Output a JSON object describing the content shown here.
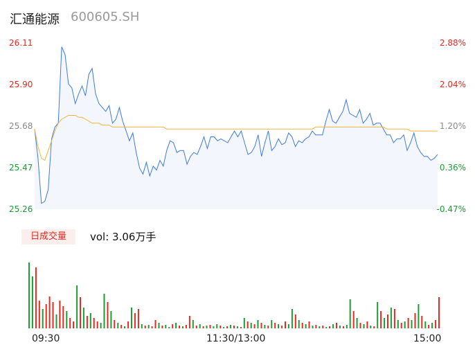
{
  "header": {
    "name": "汇通能源",
    "code": "600605.SH"
  },
  "y_left": [
    "26.11",
    "25.90",
    "25.68",
    "25.47",
    "25.26"
  ],
  "y_right": [
    "2.88%",
    "2.04%",
    "1.20%",
    "0.36%",
    "-0.47%"
  ],
  "volume": {
    "badge": "日成交量",
    "label": "vol: 3.06万手"
  },
  "x_labels": [
    "09:30",
    "11:30/13:00",
    "15:00"
  ],
  "colors": {
    "price": "#3d78e8",
    "avg": "#f0b53a",
    "up": "#e8291f",
    "down": "#1b9d32",
    "flat": "#888888"
  },
  "chart_data": {
    "type": "line",
    "price_range": [
      25.26,
      26.11
    ],
    "pct_range": [
      -0.47,
      2.88
    ],
    "series": [],
    "price": [
      25.67,
      25.52,
      25.29,
      25.3,
      25.36,
      25.62,
      25.68,
      25.7,
      26.09,
      26.05,
      25.9,
      25.88,
      25.8,
      25.85,
      25.89,
      25.84,
      25.95,
      25.98,
      25.85,
      25.8,
      25.78,
      25.76,
      25.79,
      25.7,
      25.72,
      25.78,
      25.71,
      25.66,
      25.61,
      25.65,
      25.55,
      25.47,
      25.44,
      25.5,
      25.43,
      25.48,
      25.46,
      25.51,
      25.48,
      25.56,
      25.61,
      25.6,
      25.55,
      25.56,
      25.56,
      25.49,
      25.53,
      25.55,
      25.54,
      25.58,
      25.63,
      25.57,
      25.63,
      25.63,
      25.61,
      25.62,
      25.61,
      25.6,
      25.63,
      25.66,
      25.63,
      25.66,
      25.6,
      25.54,
      25.55,
      25.58,
      25.64,
      25.53,
      25.6,
      25.66,
      25.56,
      25.58,
      25.62,
      25.59,
      25.6,
      25.65,
      25.63,
      25.58,
      25.61,
      25.6,
      25.62,
      25.63,
      25.66,
      25.64,
      25.64,
      25.64,
      25.71,
      25.77,
      25.71,
      25.7,
      25.73,
      25.76,
      25.82,
      25.75,
      25.74,
      25.73,
      25.77,
      25.7,
      25.72,
      25.75,
      25.69,
      25.7,
      25.7,
      25.67,
      25.64,
      25.64,
      25.6,
      25.62,
      25.62,
      25.64,
      25.56,
      25.6,
      25.65,
      25.58,
      25.55,
      25.53,
      25.53,
      25.51,
      25.52,
      25.54
    ],
    "avg": [
      25.67,
      25.58,
      25.52,
      25.51,
      25.56,
      25.61,
      25.66,
      25.7,
      25.72,
      25.73,
      25.74,
      25.74,
      25.74,
      25.73,
      25.73,
      25.72,
      25.71,
      25.7,
      25.7,
      25.7,
      25.69,
      25.69,
      25.69,
      25.68,
      25.68,
      25.68,
      25.68,
      25.68,
      25.68,
      25.68,
      25.68,
      25.68,
      25.68,
      25.68,
      25.68,
      25.68,
      25.68,
      25.68,
      25.68,
      25.67,
      25.67,
      25.67,
      25.67,
      25.67,
      25.67,
      25.67,
      25.67,
      25.67,
      25.67,
      25.67,
      25.67,
      25.67,
      25.67,
      25.67,
      25.67,
      25.67,
      25.67,
      25.67,
      25.67,
      25.67,
      25.67,
      25.67,
      25.67,
      25.67,
      25.67,
      25.67,
      25.67,
      25.67,
      25.67,
      25.67,
      25.67,
      25.67,
      25.67,
      25.67,
      25.67,
      25.67,
      25.67,
      25.67,
      25.67,
      25.67,
      25.67,
      25.67,
      25.67,
      25.68,
      25.68,
      25.68,
      25.68,
      25.68,
      25.68,
      25.68,
      25.68,
      25.68,
      25.68,
      25.68,
      25.68,
      25.68,
      25.68,
      25.68,
      25.68,
      25.68,
      25.68,
      25.68,
      25.68,
      25.68,
      25.67,
      25.67,
      25.67,
      25.67,
      25.67,
      25.67,
      25.67,
      25.66,
      25.66,
      25.66,
      25.66,
      25.66,
      25.66,
      25.66,
      25.66,
      25.66
    ],
    "volume_bars": [
      [
        95,
        "d"
      ],
      [
        75,
        "d"
      ],
      [
        88,
        "u"
      ],
      [
        40,
        "u"
      ],
      [
        28,
        "d"
      ],
      [
        35,
        "u"
      ],
      [
        46,
        "u"
      ],
      [
        38,
        "u"
      ],
      [
        20,
        "d"
      ],
      [
        40,
        "u"
      ],
      [
        32,
        "u"
      ],
      [
        25,
        "d"
      ],
      [
        15,
        "u"
      ],
      [
        10,
        "u"
      ],
      [
        62,
        "d"
      ],
      [
        45,
        "u"
      ],
      [
        30,
        "d"
      ],
      [
        18,
        "u"
      ],
      [
        22,
        "d"
      ],
      [
        15,
        "u"
      ],
      [
        10,
        "u"
      ],
      [
        8,
        "d"
      ],
      [
        50,
        "d"
      ],
      [
        38,
        "u"
      ],
      [
        25,
        "d"
      ],
      [
        12,
        "u"
      ],
      [
        8,
        "d"
      ],
      [
        5,
        "u"
      ],
      [
        3,
        "d"
      ],
      [
        10,
        "u"
      ],
      [
        30,
        "d"
      ],
      [
        22,
        "u"
      ],
      [
        28,
        "u"
      ],
      [
        6,
        "d"
      ],
      [
        4,
        "u"
      ],
      [
        5,
        "d"
      ],
      [
        3,
        "u"
      ],
      [
        12,
        "u"
      ],
      [
        8,
        "d"
      ],
      [
        4,
        "u"
      ],
      [
        5,
        "d"
      ],
      [
        2,
        "d"
      ],
      [
        6,
        "u"
      ],
      [
        8,
        "d"
      ],
      [
        4,
        "u"
      ],
      [
        3,
        "d"
      ],
      [
        5,
        "u"
      ],
      [
        18,
        "u"
      ],
      [
        12,
        "d"
      ],
      [
        4,
        "u"
      ],
      [
        6,
        "d"
      ],
      [
        3,
        "u"
      ],
      [
        4,
        "d"
      ],
      [
        5,
        "u"
      ],
      [
        3,
        "d"
      ],
      [
        6,
        "d"
      ],
      [
        4,
        "u"
      ],
      [
        2,
        "d"
      ],
      [
        3,
        "u"
      ],
      [
        5,
        "d"
      ],
      [
        4,
        "u"
      ],
      [
        3,
        "d"
      ],
      [
        2,
        "u"
      ],
      [
        15,
        "d"
      ],
      [
        10,
        "u"
      ],
      [
        8,
        "d"
      ],
      [
        6,
        "u"
      ],
      [
        12,
        "d"
      ],
      [
        8,
        "u"
      ],
      [
        5,
        "d"
      ],
      [
        4,
        "u"
      ],
      [
        12,
        "d"
      ],
      [
        8,
        "u"
      ],
      [
        6,
        "d"
      ],
      [
        4,
        "u"
      ],
      [
        10,
        "u"
      ],
      [
        6,
        "d"
      ],
      [
        28,
        "d"
      ],
      [
        20,
        "u"
      ],
      [
        12,
        "d"
      ],
      [
        8,
        "u"
      ],
      [
        6,
        "d"
      ],
      [
        10,
        "u"
      ],
      [
        4,
        "d"
      ],
      [
        5,
        "u"
      ],
      [
        3,
        "d"
      ],
      [
        4,
        "u"
      ],
      [
        2,
        "d"
      ],
      [
        3,
        "u"
      ],
      [
        6,
        "d"
      ],
      [
        8,
        "u"
      ],
      [
        4,
        "d"
      ],
      [
        3,
        "u"
      ],
      [
        5,
        "d"
      ],
      [
        42,
        "d"
      ],
      [
        25,
        "u"
      ],
      [
        15,
        "d"
      ],
      [
        8,
        "u"
      ],
      [
        6,
        "d"
      ],
      [
        10,
        "u"
      ],
      [
        4,
        "d"
      ],
      [
        3,
        "u"
      ],
      [
        38,
        "d"
      ],
      [
        25,
        "u"
      ],
      [
        15,
        "d"
      ],
      [
        20,
        "u"
      ],
      [
        30,
        "d"
      ],
      [
        28,
        "u"
      ],
      [
        12,
        "d"
      ],
      [
        8,
        "u"
      ],
      [
        10,
        "d"
      ],
      [
        15,
        "u"
      ],
      [
        12,
        "d"
      ],
      [
        22,
        "u"
      ],
      [
        35,
        "d"
      ],
      [
        18,
        "u"
      ],
      [
        10,
        "d"
      ],
      [
        5,
        "u"
      ],
      [
        8,
        "d"
      ],
      [
        12,
        "u"
      ],
      [
        45,
        "u"
      ]
    ]
  }
}
